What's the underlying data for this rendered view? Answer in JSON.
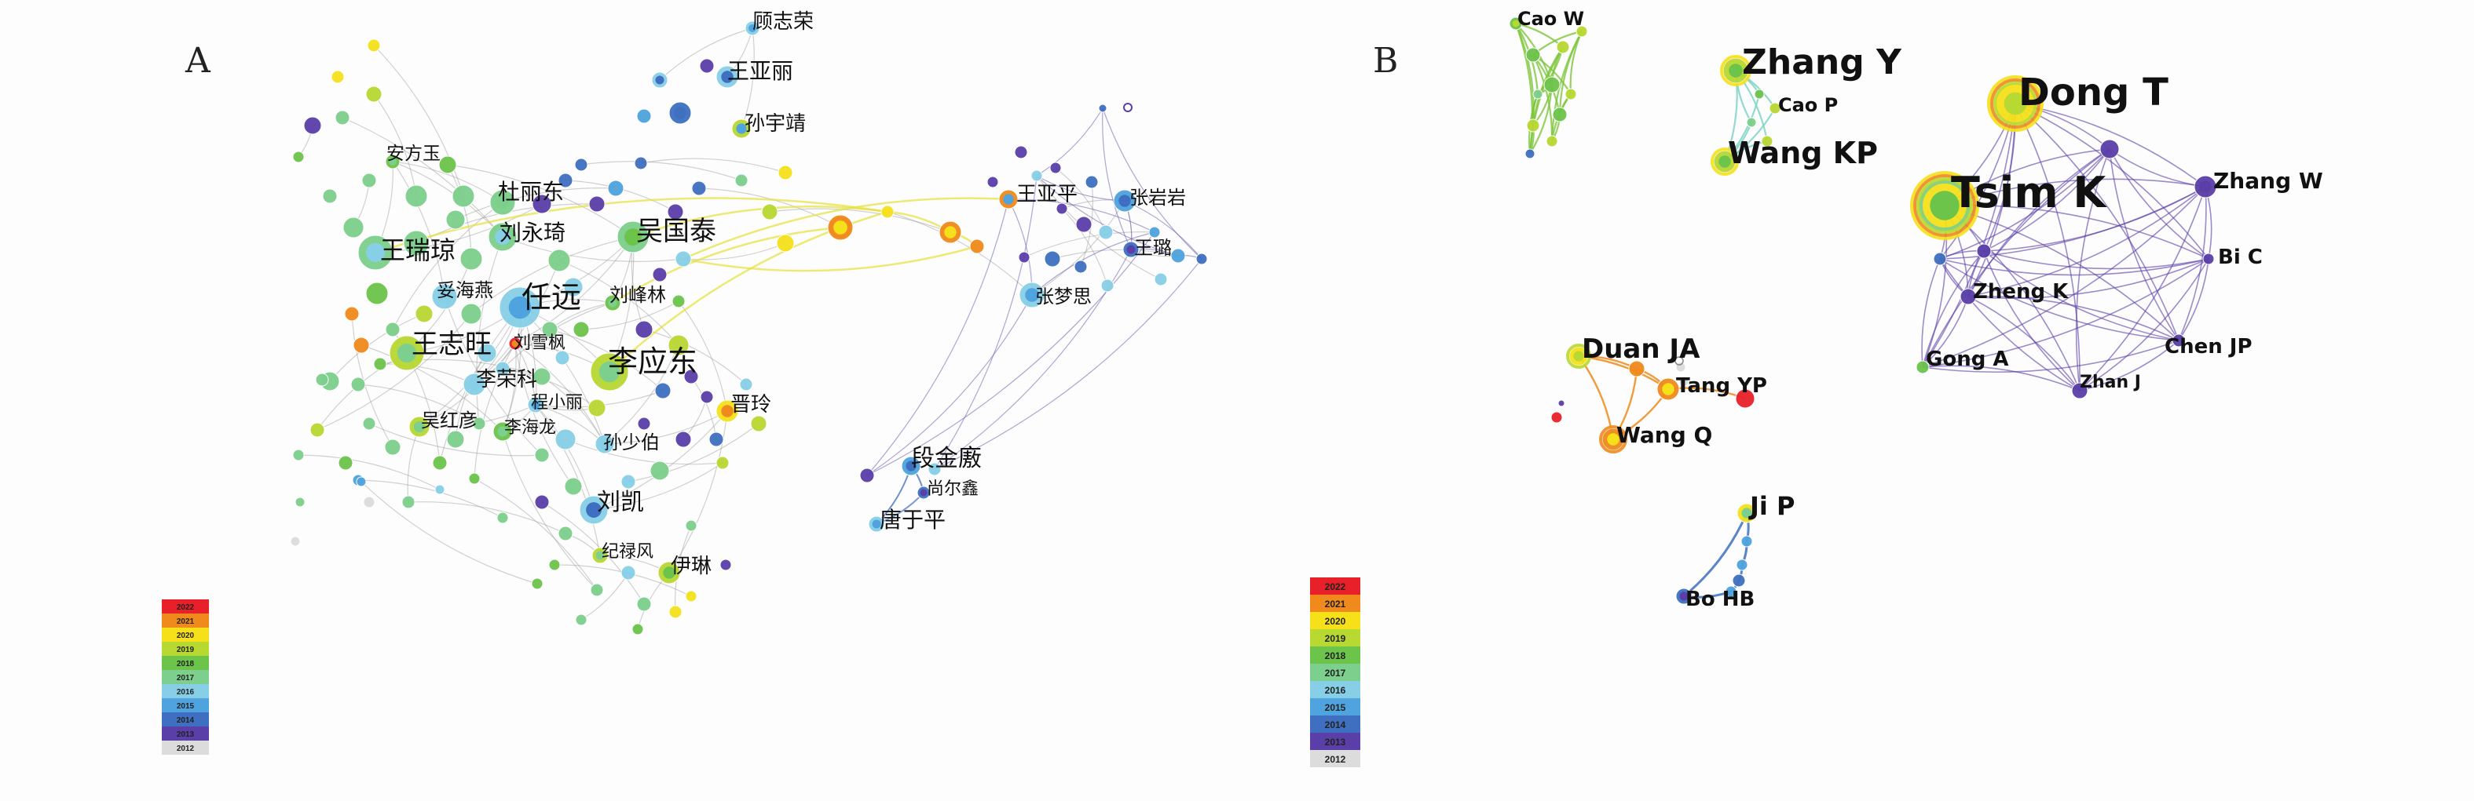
{
  "panels": [
    {
      "letter": "A",
      "legend_years": [
        "2022",
        "2021",
        "2020",
        "2019",
        "2018",
        "2017",
        "2016",
        "2015",
        "2014",
        "2013",
        "2012"
      ],
      "labels": [
        {
          "id": "a1",
          "text": "顾志荣"
        },
        {
          "id": "a2",
          "text": "王亚丽"
        },
        {
          "id": "a3",
          "text": "孙宇靖"
        },
        {
          "id": "a4",
          "text": "安方玉"
        },
        {
          "id": "a5",
          "text": "杜丽东"
        },
        {
          "id": "a6",
          "text": "刘永琦"
        },
        {
          "id": "a7",
          "text": "吴国泰"
        },
        {
          "id": "a8",
          "text": "王瑞琼"
        },
        {
          "id": "a9",
          "text": "妥海燕"
        },
        {
          "id": "a10",
          "text": "任远"
        },
        {
          "id": "a11",
          "text": "刘峰林"
        },
        {
          "id": "a12",
          "text": "王志旺"
        },
        {
          "id": "a13",
          "text": "刘雪枫"
        },
        {
          "id": "a14",
          "text": "李应东"
        },
        {
          "id": "a15",
          "text": "李荣科"
        },
        {
          "id": "a16",
          "text": "程小丽"
        },
        {
          "id": "a17",
          "text": "吴红彦"
        },
        {
          "id": "a18",
          "text": "李海龙"
        },
        {
          "id": "a19",
          "text": "晋玲"
        },
        {
          "id": "a20",
          "text": "孙少伯"
        },
        {
          "id": "a21",
          "text": "刘凯"
        },
        {
          "id": "a22",
          "text": "纪禄风"
        },
        {
          "id": "a23",
          "text": "伊琳"
        },
        {
          "id": "a24",
          "text": "王亚平"
        },
        {
          "id": "a25",
          "text": "张岩岩"
        },
        {
          "id": "a26",
          "text": "王璐"
        },
        {
          "id": "a27",
          "text": "张梦思"
        },
        {
          "id": "a28",
          "text": "段金廒"
        },
        {
          "id": "a29",
          "text": "尚尔鑫"
        },
        {
          "id": "a30",
          "text": "唐于平"
        }
      ]
    },
    {
      "letter": "B",
      "legend_years": [
        "2022",
        "2021",
        "2020",
        "2019",
        "2018",
        "2017",
        "2016",
        "2015",
        "2014",
        "2013",
        "2012"
      ],
      "labels": [
        {
          "id": "b1",
          "text": "Cao W"
        },
        {
          "id": "b2",
          "text": "Zhang Y"
        },
        {
          "id": "b3",
          "text": "Cao P"
        },
        {
          "id": "b4",
          "text": "Wang KP"
        },
        {
          "id": "b5",
          "text": "Dong T"
        },
        {
          "id": "b6",
          "text": "Tsim K"
        },
        {
          "id": "b7",
          "text": "Zhang W"
        },
        {
          "id": "b8",
          "text": "Bi C"
        },
        {
          "id": "b9",
          "text": "Zheng K"
        },
        {
          "id": "b10",
          "text": "Chen JP"
        },
        {
          "id": "b11",
          "text": "Gong A"
        },
        {
          "id": "b12",
          "text": "Zhan J"
        },
        {
          "id": "b13",
          "text": "Duan JA"
        },
        {
          "id": "b14",
          "text": "Tang YP"
        },
        {
          "id": "b15",
          "text": "Wang Q"
        },
        {
          "id": "b16",
          "text": "Ji P"
        },
        {
          "id": "b17",
          "text": "Bo HB"
        }
      ]
    }
  ],
  "colors": {
    "2022": "#e8202a",
    "2021": "#f08a1c",
    "2020": "#f5e01a",
    "2019": "#b8d832",
    "2018": "#6cc44a",
    "2017": "#7ccf8c",
    "2016": "#86cfe6",
    "2015": "#4fa3de",
    "2014": "#3e6fc0",
    "2013": "#5a3fa8",
    "2012": "#dcdcdc"
  }
}
